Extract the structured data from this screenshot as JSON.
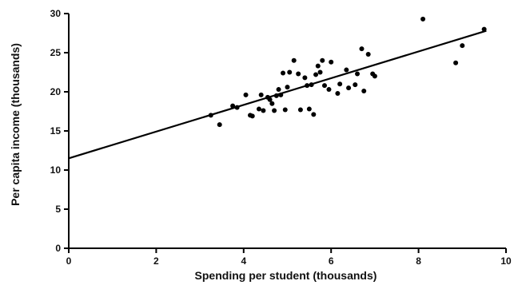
{
  "chart_data": {
    "type": "scatter",
    "title": "",
    "xlabel": "Spending per student (thousands)",
    "ylabel": "Per capita income (thousands)",
    "xlim": [
      0,
      10
    ],
    "ylim": [
      0,
      30
    ],
    "xticks": [
      0,
      2,
      4,
      6,
      8,
      10
    ],
    "yticks": [
      0,
      5,
      10,
      15,
      20,
      25,
      30
    ],
    "grid": false,
    "legend": "none",
    "points_color": "#000000",
    "series": [
      {
        "points": [
          [
            3.25,
            17.0
          ],
          [
            3.45,
            15.8
          ],
          [
            3.75,
            18.2
          ],
          [
            3.85,
            18.0
          ],
          [
            4.05,
            19.6
          ],
          [
            4.15,
            17.0
          ],
          [
            4.2,
            16.9
          ],
          [
            4.35,
            17.8
          ],
          [
            4.4,
            19.6
          ],
          [
            4.45,
            17.6
          ],
          [
            4.55,
            19.3
          ],
          [
            4.6,
            19.0
          ],
          [
            4.65,
            18.5
          ],
          [
            4.7,
            17.6
          ],
          [
            4.75,
            19.5
          ],
          [
            4.8,
            20.3
          ],
          [
            4.85,
            19.6
          ],
          [
            4.9,
            22.4
          ],
          [
            4.95,
            17.7
          ],
          [
            5.0,
            20.6
          ],
          [
            5.05,
            22.5
          ],
          [
            5.15,
            24.0
          ],
          [
            5.25,
            22.3
          ],
          [
            5.3,
            17.7
          ],
          [
            5.4,
            21.8
          ],
          [
            5.45,
            20.8
          ],
          [
            5.5,
            17.8
          ],
          [
            5.55,
            20.9
          ],
          [
            5.6,
            17.1
          ],
          [
            5.65,
            22.2
          ],
          [
            5.7,
            23.3
          ],
          [
            5.75,
            22.5
          ],
          [
            5.8,
            24.0
          ],
          [
            5.85,
            20.8
          ],
          [
            5.95,
            20.3
          ],
          [
            6.0,
            23.8
          ],
          [
            6.15,
            19.8
          ],
          [
            6.2,
            21.0
          ],
          [
            6.35,
            22.8
          ],
          [
            6.4,
            20.5
          ],
          [
            6.55,
            20.9
          ],
          [
            6.6,
            22.3
          ],
          [
            6.7,
            25.5
          ],
          [
            6.75,
            20.1
          ],
          [
            6.85,
            24.8
          ],
          [
            6.95,
            22.3
          ],
          [
            7.0,
            22.0
          ],
          [
            8.1,
            29.3
          ],
          [
            8.85,
            23.7
          ],
          [
            9.0,
            25.9
          ],
          [
            9.5,
            28.0
          ]
        ]
      }
    ],
    "trendline": {
      "x": [
        0,
        9.55
      ],
      "y": [
        11.5,
        27.8
      ]
    }
  }
}
